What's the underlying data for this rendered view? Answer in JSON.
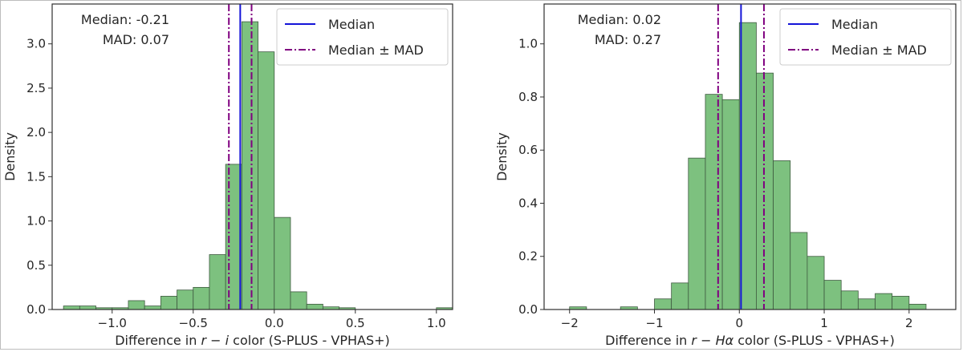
{
  "colors": {
    "bar_fill": "#7dc17f",
    "bar_edge": "#3f5a40",
    "median_line": "#1414d8",
    "mad_line": "#800080",
    "axis": "#2f2f2f"
  },
  "chart_data": [
    {
      "type": "histogram",
      "xlabel_pre": "Difference in ",
      "xlabel_math": "r − i",
      "xlabel_post": " color (S-PLUS - VPHAS+)",
      "ylabel": "Density",
      "xlim": [
        -1.37,
        1.1
      ],
      "ylim": [
        0,
        3.45
      ],
      "xticks": [
        -1.0,
        -0.5,
        0.0,
        0.5,
        1.0
      ],
      "xtick_labels": [
        "−1.0",
        "−0.5",
        "0.0",
        "0.5",
        "1.0"
      ],
      "yticks": [
        0.0,
        0.5,
        1.0,
        1.5,
        2.0,
        2.5,
        3.0
      ],
      "ytick_labels": [
        "0.0",
        "0.5",
        "1.0",
        "1.5",
        "2.0",
        "2.5",
        "3.0"
      ],
      "bin_edges": [
        -1.3,
        -1.2,
        -1.1,
        -1.0,
        -0.9,
        -0.8,
        -0.7,
        -0.6,
        -0.5,
        -0.4,
        -0.3,
        -0.2,
        -0.1,
        0.0,
        0.1,
        0.2,
        0.3,
        0.4,
        0.5,
        0.6,
        0.7,
        0.8,
        0.9,
        1.0,
        1.1
      ],
      "densities": [
        0.04,
        0.04,
        0.02,
        0.02,
        0.1,
        0.04,
        0.15,
        0.22,
        0.25,
        0.62,
        1.64,
        3.25,
        2.91,
        1.04,
        0.2,
        0.06,
        0.03,
        0.02,
        0.0,
        0.0,
        0.0,
        0.0,
        0.0,
        0.02
      ],
      "median": -0.21,
      "mad": 0.07,
      "annotation_median": "Median: -0.21",
      "annotation_mad": "MAD: 0.07",
      "legend": [
        "Median",
        "Median ± MAD"
      ],
      "legend_position": "top-right",
      "grid": false
    },
    {
      "type": "histogram",
      "xlabel_pre": "Difference in ",
      "xlabel_math": "r − Hα",
      "xlabel_post": " color (S-PLUS - VPHAS+)",
      "ylabel": "Density",
      "xlim": [
        -2.3,
        2.55
      ],
      "ylim": [
        0,
        1.15
      ],
      "xticks": [
        -2,
        -1,
        0,
        1,
        2
      ],
      "xtick_labels": [
        "−2",
        "−1",
        "0",
        "1",
        "2"
      ],
      "yticks": [
        0.0,
        0.2,
        0.4,
        0.6,
        0.8,
        1.0
      ],
      "ytick_labels": [
        "0.0",
        "0.2",
        "0.4",
        "0.6",
        "0.8",
        "1.0"
      ],
      "bin_edges": [
        -2.0,
        -1.8,
        -1.6,
        -1.4,
        -1.2,
        -1.0,
        -0.8,
        -0.6,
        -0.4,
        -0.2,
        0.0,
        0.2,
        0.4,
        0.6,
        0.8,
        1.0,
        1.2,
        1.4,
        1.6,
        1.8,
        2.0,
        2.2,
        2.4
      ],
      "densities": [
        0.01,
        0.0,
        0.0,
        0.01,
        0.0,
        0.04,
        0.1,
        0.57,
        0.81,
        0.79,
        1.08,
        0.89,
        0.56,
        0.29,
        0.2,
        0.11,
        0.07,
        0.04,
        0.06,
        0.05,
        0.02,
        0.0,
        0.01
      ],
      "median": 0.02,
      "mad": 0.27,
      "annotation_median": "Median: 0.02",
      "annotation_mad": "MAD: 0.27",
      "legend": [
        "Median",
        "Median ± MAD"
      ],
      "legend_position": "top-right",
      "grid": false
    }
  ]
}
